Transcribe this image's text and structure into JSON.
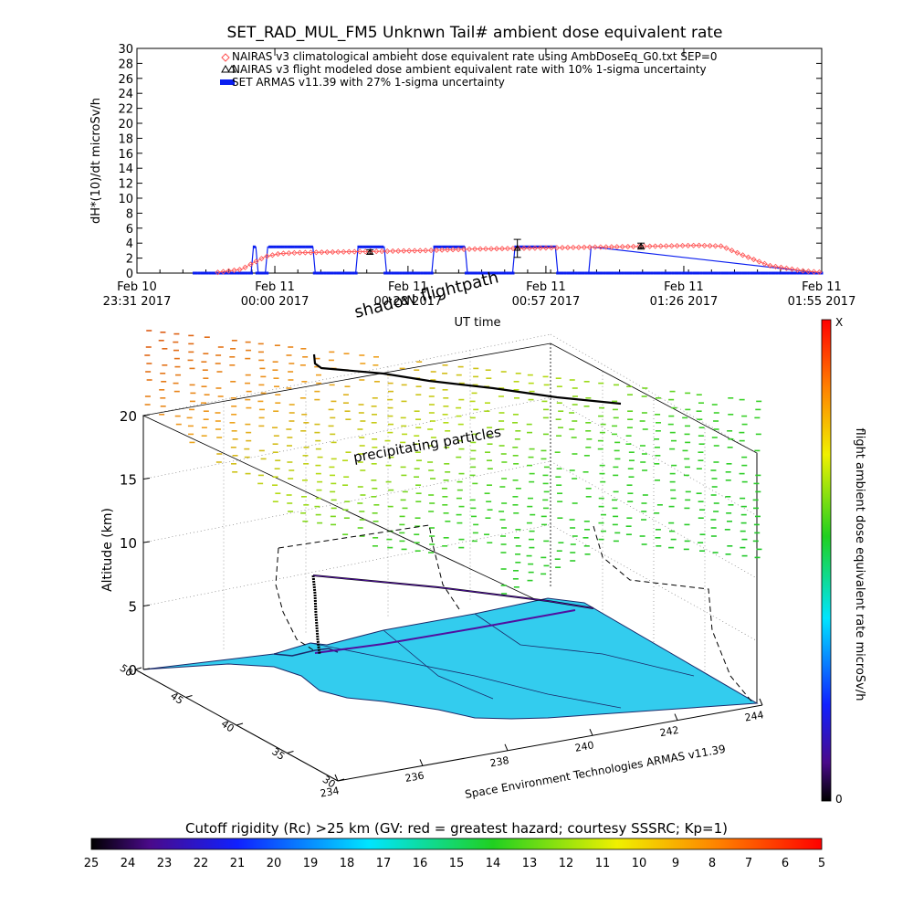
{
  "title": "SET_RAD_MUL_FM5 Unknwn Tail#  ambient dose equivalent rate",
  "chart_data": [
    {
      "type": "line",
      "ylabel": "dH*(10)/dt microSv/h",
      "xlabel": "UT time",
      "ylim": [
        0,
        30
      ],
      "yticks": [
        0,
        2,
        4,
        6,
        8,
        10,
        12,
        14,
        16,
        18,
        20,
        22,
        24,
        26,
        28,
        30
      ],
      "x_range_minutes": [
        0,
        144
      ],
      "xticks": [
        {
          "line1": "Feb 10",
          "line2": "23:31 2017",
          "minute": 0
        },
        {
          "line1": "Feb 11",
          "line2": "00:00 2017",
          "minute": 29
        },
        {
          "line1": "Feb 11",
          "line2": "00:28 2017",
          "minute": 57
        },
        {
          "line1": "Feb 11",
          "line2": "00:57 2017",
          "minute": 86
        },
        {
          "line1": "Feb 11",
          "line2": "01:26 2017",
          "minute": 115
        },
        {
          "line1": "Feb 11",
          "line2": "01:55 2017",
          "minute": 144
        }
      ],
      "legend_position": "top",
      "series": [
        {
          "name": "NAIRAS v3 climatological ambient dose equivalent rate using AmbDoseEq_G0.txt SEP=0",
          "color": "#ff5050",
          "marker": "diamond",
          "x": [
            17,
            22,
            24,
            27,
            30,
            33,
            40,
            50,
            60,
            70,
            80,
            90,
            100,
            110,
            118,
            123,
            127,
            133,
            140,
            144
          ],
          "y": [
            0.1,
            0.5,
            1.2,
            2.2,
            2.6,
            2.7,
            2.8,
            2.9,
            3.0,
            3.2,
            3.3,
            3.4,
            3.5,
            3.6,
            3.7,
            3.6,
            2.5,
            1.0,
            0.3,
            0.1
          ]
        },
        {
          "name": "NAIRAS v3 flight modeled dose ambient equivalent rate with 10% 1-sigma uncertainty",
          "color": "#000000",
          "marker": "triangle",
          "x": [
            49,
            80,
            106
          ],
          "y": [
            2.8,
            3.3,
            3.6
          ],
          "err": [
            0.3,
            1.2,
            0.4
          ]
        },
        {
          "name": "SET ARMAS v11.39 with 27% 1-sigma uncertainty",
          "color": "#0a1ef0",
          "marker": "square",
          "x": [
            12,
            24,
            24.5,
            25,
            25.5,
            26,
            27,
            27.5,
            28,
            37,
            37.5,
            46,
            46.5,
            52,
            52.5,
            62,
            62.5,
            69,
            69.5,
            79,
            79.5,
            88,
            88.5,
            95,
            95.5,
            144
          ],
          "y": [
            0,
            0,
            3.5,
            3.5,
            0,
            0,
            0,
            3.5,
            3.5,
            3.5,
            0,
            0,
            3.5,
            3.5,
            0,
            0,
            3.5,
            3.5,
            0,
            0,
            3.5,
            3.5,
            0,
            0,
            3.5,
            0
          ]
        }
      ]
    },
    {
      "type": "3d-map",
      "zlabel": "Altitude (km)",
      "zticks": [
        0,
        5,
        10,
        15,
        20
      ],
      "lat_ticks": [
        30,
        35,
        40,
        45,
        50
      ],
      "lon_ticks": [
        234,
        236,
        238,
        240,
        242,
        244
      ],
      "annotations": [
        "shadow flightpath",
        "precipitating particles"
      ],
      "credit": "Space Environment Technologies ARMAS v11.39",
      "right_colorbar": {
        "label": "flight ambient dose equivalent rate microSv/h",
        "top": "X",
        "bottom": "0"
      },
      "bottom_colorbar": {
        "label": "Cutoff rigidity (Rc) >25 km (GV: red = greatest hazard; courtesy SSSRC; Kp=1)",
        "ticks": [
          "25",
          "24",
          "23",
          "22",
          "21",
          "20",
          "19",
          "18",
          "17",
          "16",
          "15",
          "14",
          "13",
          "12",
          "11",
          "10",
          "9",
          "8",
          "7",
          "6",
          "5"
        ]
      }
    }
  ],
  "colors": {
    "land": "#33ccee",
    "land_dark": "#1a9ab5",
    "track": "#000000",
    "axis": "#000000"
  }
}
